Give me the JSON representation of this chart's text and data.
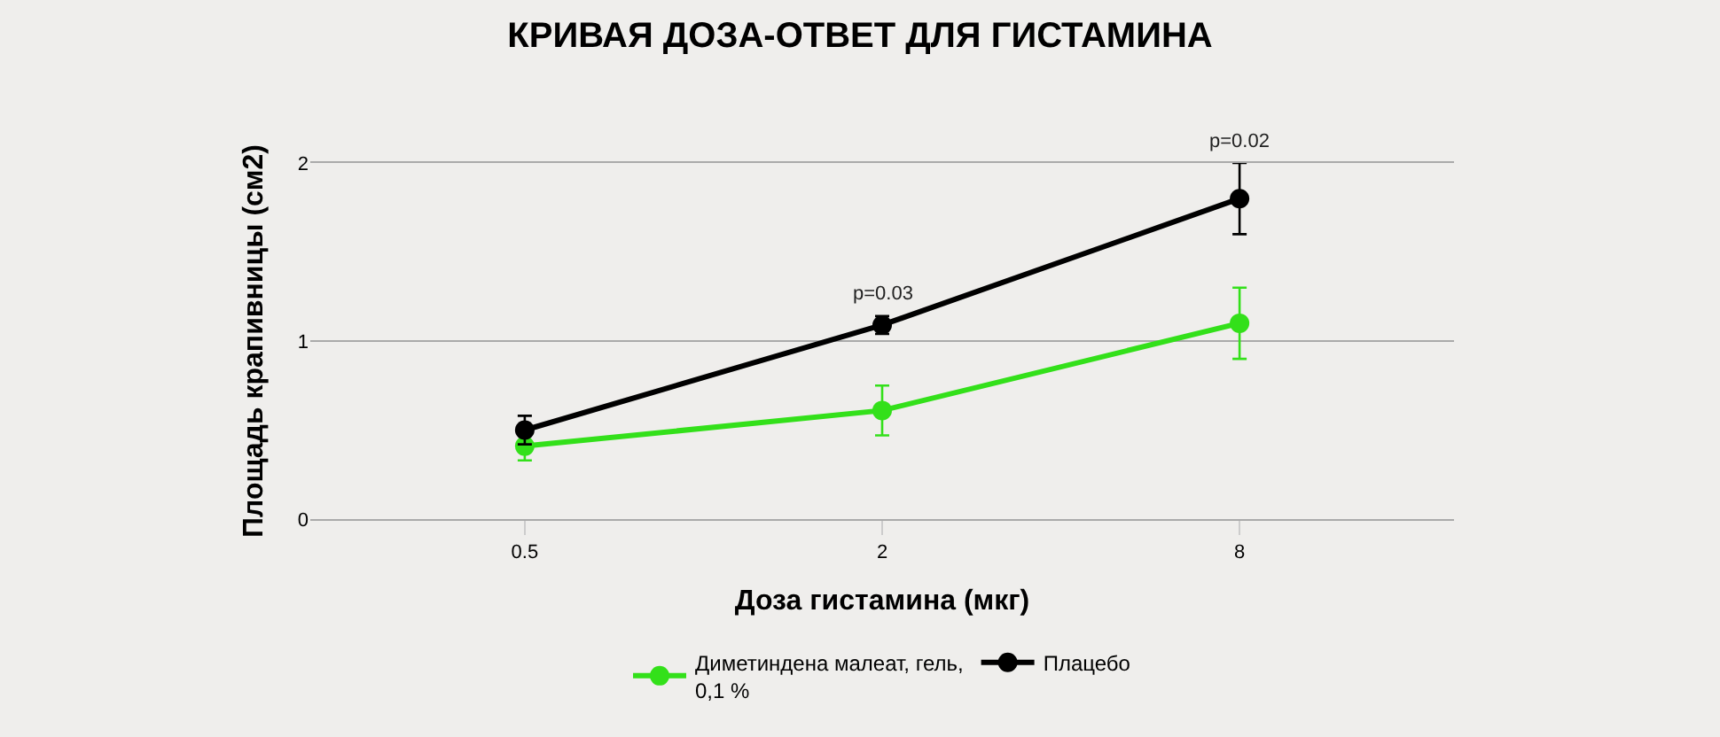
{
  "chart_data": {
    "type": "line",
    "title": "КРИВАЯ ДОЗА-ОТВЕТ ДЛЯ ГИСТАМИНА",
    "xlabel": "Доза гистамина (мкг)",
    "ylabel": "Площадь крапивницы (см2)",
    "categories": [
      "0.5",
      "2",
      "8"
    ],
    "series": [
      {
        "name": "Диметиндена малеат, гель,\n0,1 %",
        "color": "#33e01a",
        "values": [
          0.41,
          0.61,
          1.1
        ],
        "errors": [
          0.08,
          0.14,
          0.2
        ]
      },
      {
        "name": "Плацебо",
        "color": "#000000",
        "values": [
          0.5,
          1.09,
          1.8
        ],
        "errors": [
          0.08,
          0.05,
          0.2
        ]
      }
    ],
    "annotations": [
      "p=0.03",
      "p=0.02"
    ],
    "ylim": [
      0,
      2
    ],
    "yticks": [
      0,
      1,
      2
    ],
    "grid": "y",
    "legend": "bottom",
    "marker": "circle",
    "line_style": "solid"
  }
}
